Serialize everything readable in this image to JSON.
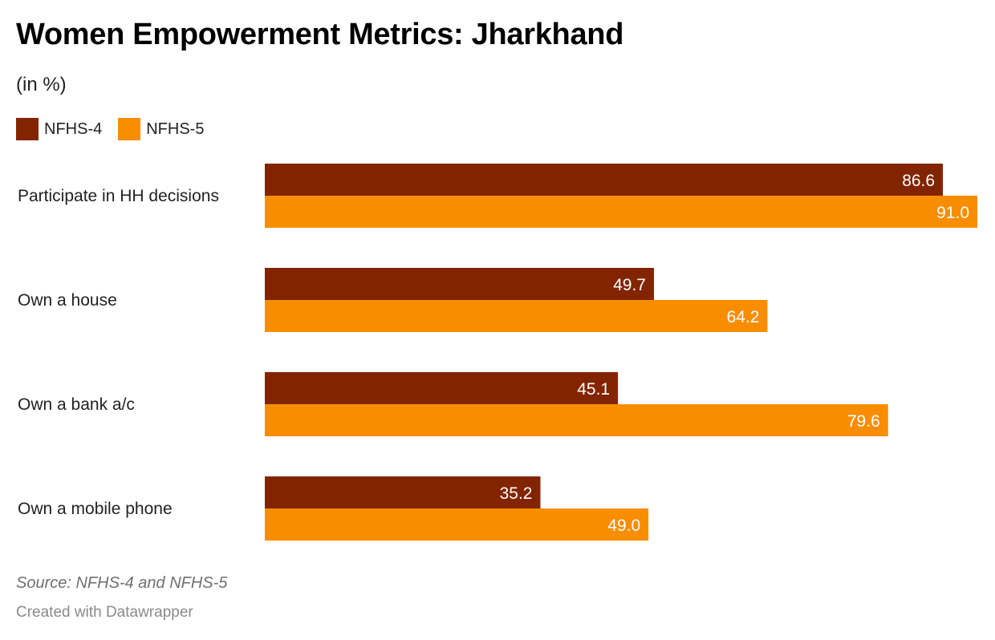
{
  "chart_data": {
    "type": "bar",
    "orientation": "horizontal",
    "title": "Women Empowerment Metrics: Jharkhand",
    "subtitle": "(in %)",
    "categories": [
      "Participate in HH decisions",
      "Own a house",
      "Own a bank a/c",
      "Own a mobile phone"
    ],
    "series": [
      {
        "name": "NFHS-4",
        "color": "#832400",
        "values": [
          86.6,
          49.7,
          45.1,
          35.2
        ]
      },
      {
        "name": "NFHS-5",
        "color": "#F98D00",
        "values": [
          91.0,
          64.2,
          79.6,
          49.0
        ]
      }
    ],
    "xlim": [
      0,
      91.0
    ],
    "grid": false,
    "legend": "top-left",
    "source": "Source: NFHS-4 and NFHS-5",
    "credit": "Created with Datawrapper"
  }
}
